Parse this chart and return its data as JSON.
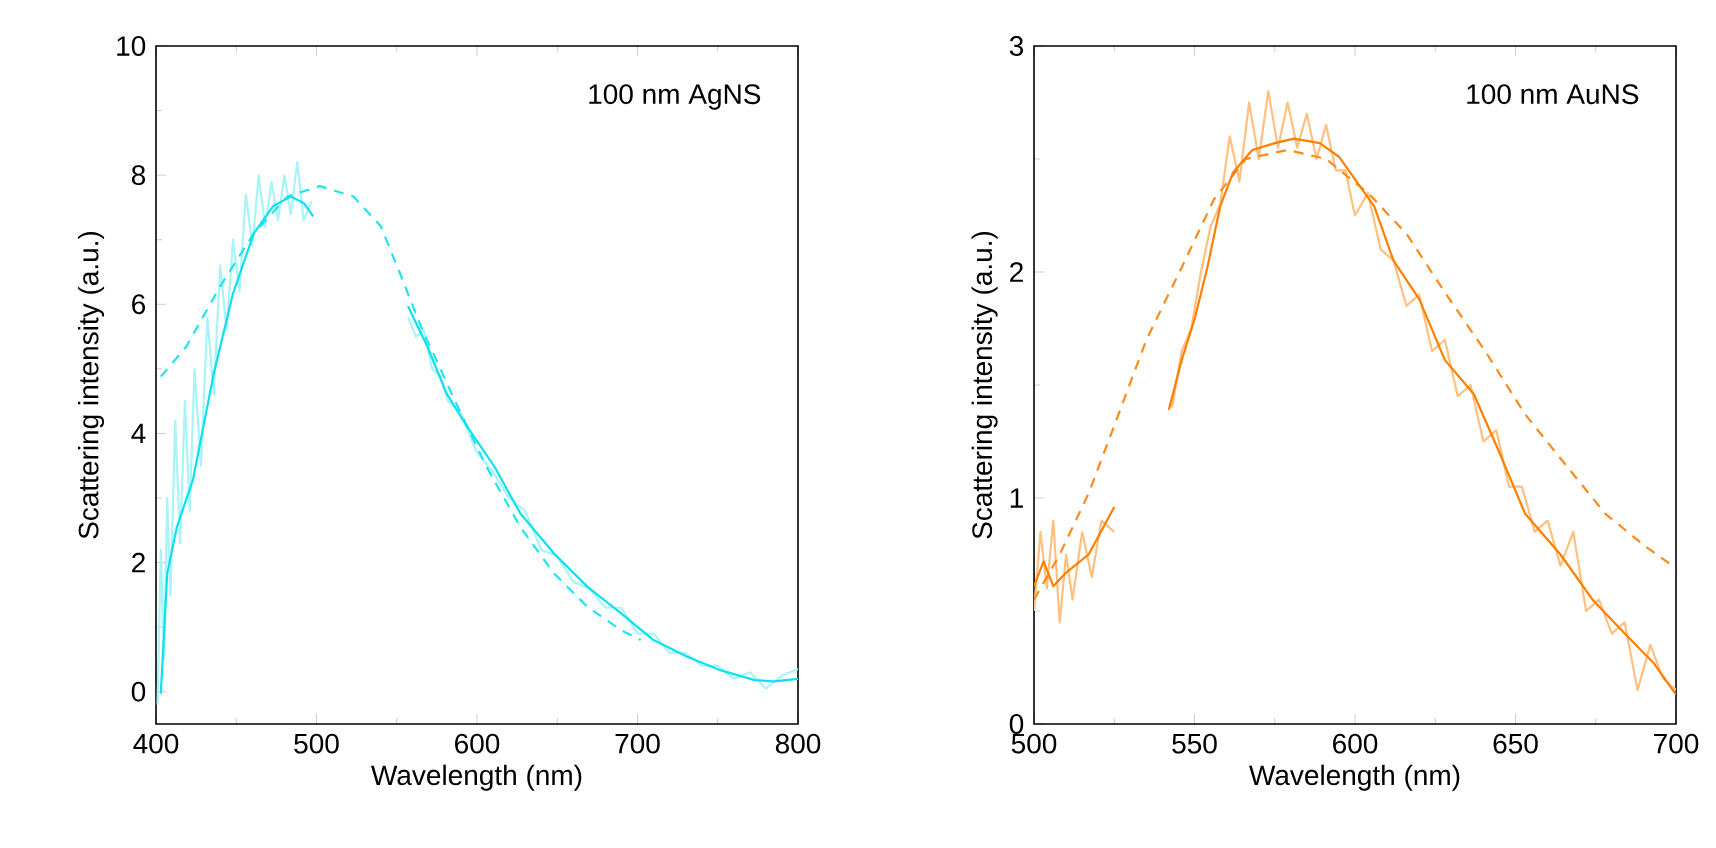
{
  "chart_data": [
    {
      "type": "line",
      "xlabel": "Wavelength (nm)",
      "ylabel": "Scattering intensity (a.u.)",
      "annotations": [
        "100 nm AgNS"
      ],
      "xlim": [
        400,
        800
      ],
      "ylim": [
        -0.5,
        10
      ],
      "xticks": [
        400,
        500,
        600,
        700,
        800
      ],
      "yticks": [
        0,
        2,
        4,
        6,
        8,
        10
      ],
      "grid": false,
      "series": [
        {
          "color": "#a8f4f8",
          "line_style": "solid",
          "x": [
            401,
            403,
            405,
            407,
            409,
            412,
            415,
            418,
            421,
            424,
            428,
            432,
            436,
            440,
            444,
            448,
            452,
            456,
            460,
            464,
            468,
            472,
            476,
            480,
            484,
            488,
            492,
            497,
            525,
            557,
            562,
            567,
            572,
            577,
            582,
            590,
            600,
            610,
            620,
            630,
            640,
            650,
            660,
            670,
            680,
            690,
            700,
            710,
            720,
            730,
            740,
            750,
            760,
            770,
            780,
            790,
            800
          ],
          "values": [
            -0.2,
            2.2,
            0.5,
            3.0,
            1.5,
            4.2,
            2.3,
            4.5,
            2.8,
            5.0,
            3.5,
            5.8,
            4.6,
            6.6,
            5.6,
            7.0,
            6.2,
            7.7,
            6.9,
            8.0,
            7.2,
            7.9,
            7.3,
            8.0,
            7.4,
            8.2,
            7.3,
            7.6,
            null,
            5.8,
            5.5,
            5.6,
            5.0,
            4.9,
            4.5,
            4.3,
            3.7,
            3.4,
            3.0,
            2.8,
            2.2,
            2.1,
            1.7,
            1.6,
            1.3,
            1.3,
            0.9,
            0.9,
            0.6,
            0.6,
            0.4,
            0.4,
            0.2,
            0.3,
            0.05,
            0.25,
            0.35
          ]
        },
        {
          "color": "#22e4f0",
          "line_style": "dashed",
          "x": [
            403,
            419,
            440,
            461,
            482,
            502,
            523,
            540,
            552,
            565,
            586,
            606,
            627,
            648,
            669,
            690,
            702
          ],
          "values": [
            4.88,
            5.35,
            6.28,
            7.1,
            7.67,
            7.83,
            7.67,
            7.21,
            6.48,
            5.66,
            4.52,
            3.48,
            2.55,
            1.83,
            1.31,
            0.95,
            0.8
          ]
        },
        {
          "color": "#10e0ee",
          "line_style": "solid",
          "x": [
            403,
            407,
            413,
            423,
            436,
            448,
            461,
            473,
            484,
            492,
            498,
            525,
            557,
            569,
            581,
            594,
            611,
            627,
            648,
            669,
            690,
            710,
            731,
            752,
            773,
            785,
            800
          ],
          "values": [
            -0.03,
            1.83,
            2.55,
            3.28,
            4.93,
            6.17,
            7.1,
            7.52,
            7.67,
            7.57,
            7.36,
            null,
            5.97,
            5.35,
            4.62,
            4.1,
            3.48,
            2.76,
            2.14,
            1.62,
            1.21,
            0.8,
            0.54,
            0.33,
            0.18,
            0.16,
            0.2
          ]
        }
      ]
    },
    {
      "type": "line",
      "xlabel": "Wavelength (nm)",
      "ylabel": "Scattering intensity (a.u.)",
      "annotations": [
        "100 nm AuNS"
      ],
      "xlim": [
        500,
        700
      ],
      "ylim": [
        0,
        3
      ],
      "xticks": [
        500,
        550,
        600,
        650,
        700
      ],
      "yticks": [
        0,
        1,
        2,
        3
      ],
      "grid": false,
      "series": [
        {
          "color": "#ffc080",
          "line_style": "solid",
          "x": [
            500,
            502,
            504,
            506,
            508,
            510,
            512,
            515,
            518,
            521,
            525,
            533,
            543,
            546,
            549,
            552,
            555,
            558,
            561,
            564,
            567,
            570,
            573,
            576,
            579,
            582,
            585,
            588,
            591,
            594,
            597,
            600,
            604,
            608,
            612,
            616,
            620,
            624,
            628,
            632,
            636,
            640,
            644,
            648,
            652,
            656,
            660,
            664,
            668,
            672,
            676,
            680,
            684,
            688,
            692,
            696,
            700
          ],
          "values": [
            0.5,
            0.85,
            0.6,
            0.9,
            0.45,
            0.75,
            0.55,
            0.85,
            0.65,
            0.9,
            0.85,
            null,
            1.4,
            1.65,
            1.75,
            2.0,
            2.2,
            2.3,
            2.6,
            2.4,
            2.75,
            2.5,
            2.8,
            2.55,
            2.75,
            2.55,
            2.7,
            2.5,
            2.65,
            2.45,
            2.45,
            2.25,
            2.35,
            2.1,
            2.05,
            1.85,
            1.9,
            1.65,
            1.7,
            1.45,
            1.5,
            1.25,
            1.3,
            1.05,
            1.05,
            0.85,
            0.9,
            0.7,
            0.85,
            0.5,
            0.55,
            0.4,
            0.45,
            0.15,
            0.35,
            0.2,
            0.15
          ]
        },
        {
          "color": "#ff8a1a",
          "line_style": "dashed",
          "x": [
            500,
            508,
            517,
            525,
            535,
            546,
            556,
            566,
            579,
            591,
            604,
            616,
            628,
            641,
            653,
            666,
            678,
            691,
            700
          ],
          "values": [
            0.55,
            0.75,
            1.02,
            1.32,
            1.7,
            2.02,
            2.32,
            2.5,
            2.54,
            2.5,
            2.35,
            2.17,
            1.91,
            1.64,
            1.37,
            1.14,
            0.93,
            0.78,
            0.69
          ]
        },
        {
          "color": "#ff8000",
          "line_style": "solid",
          "x": [
            500,
            503,
            506,
            510,
            517,
            525,
            533,
            542,
            546,
            550,
            554,
            558,
            562,
            568,
            575,
            581,
            589,
            595,
            600,
            606,
            612,
            620,
            628,
            637,
            645,
            653,
            664,
            674,
            684,
            693,
            700
          ],
          "values": [
            0.61,
            0.72,
            0.61,
            0.67,
            0.75,
            0.96,
            null,
            1.39,
            1.61,
            1.79,
            2.02,
            2.29,
            2.44,
            2.54,
            2.57,
            2.59,
            2.57,
            2.51,
            2.41,
            2.29,
            2.05,
            1.88,
            1.61,
            1.46,
            1.2,
            0.93,
            0.75,
            0.55,
            0.4,
            0.27,
            0.13
          ]
        }
      ]
    }
  ]
}
